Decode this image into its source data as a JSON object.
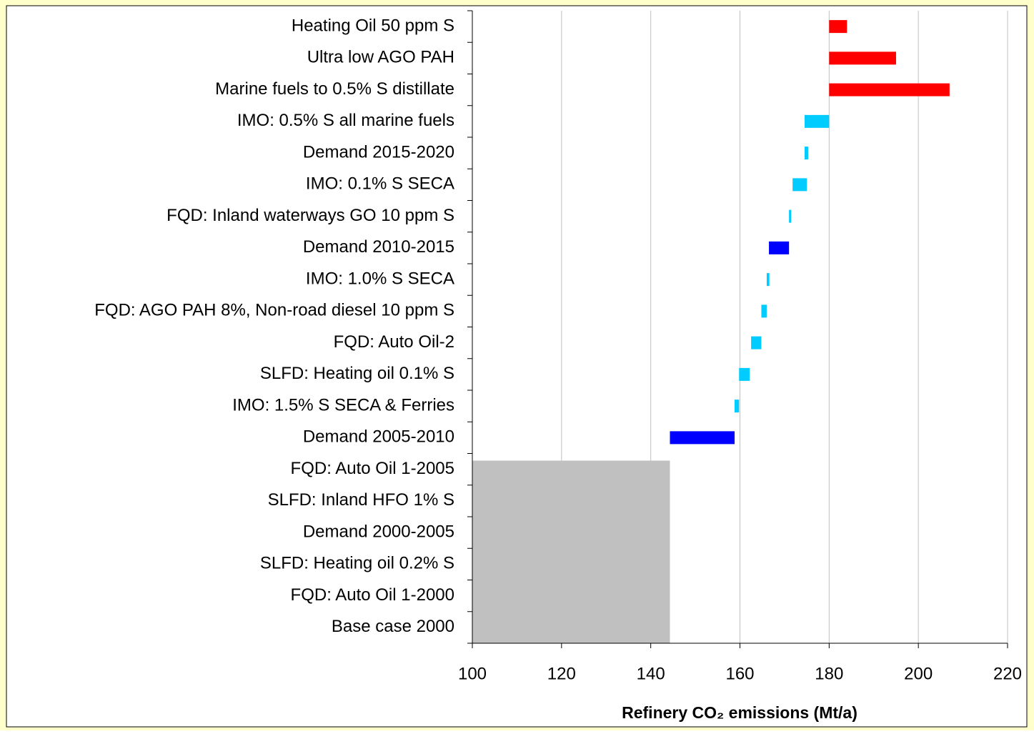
{
  "chart_data": {
    "type": "floating_bar",
    "x_label": "Refinery CO₂ emissions (Mt/a)",
    "categories": [
      "Heating Oil 50 ppm S",
      "Ultra low AGO PAH",
      "Marine fuels to 0.5% S distillate",
      "IMO: 0.5% S all marine fuels",
      "Demand 2015-2020",
      "IMO: 0.1% S SECA",
      "FQD: Inland waterways GO 10 ppm S",
      "Demand 2010-2015",
      "IMO: 1.0% S SECA",
      "FQD: AGO PAH 8%, Non-road diesel 10 ppm S",
      "FQD: Auto Oil-2",
      "SLFD: Heating oil 0.1% S",
      "IMO: 1.5% S SECA & Ferries",
      "Demand 2005-2010",
      "FQD: Auto Oil 1-2005",
      "SLFD: Inland HFO 1% S",
      "Demand 2000-2005",
      "SLFD: Heating oil 0.2% S",
      "FQD: Auto Oil 1-2000",
      "Base case 2000"
    ],
    "low": [
      180,
      180,
      180,
      174.5,
      174.5,
      171.8,
      171,
      166.5,
      166,
      164.8,
      162.5,
      159.8,
      158.8,
      144.3,
      null,
      null,
      null,
      null,
      null,
      null
    ],
    "high": [
      184,
      195,
      207,
      180,
      175.3,
      175,
      171.5,
      171,
      166.6,
      166,
      164.8,
      162.2,
      159.8,
      158.8,
      null,
      null,
      null,
      null,
      null,
      null
    ],
    "colors": [
      "#ff0000",
      "#ff0000",
      "#ff0000",
      "#00ccff",
      "#00ccff",
      "#00ccff",
      "#00ccff",
      "#0000ff",
      "#00ccff",
      "#00ccff",
      "#00ccff",
      "#00ccff",
      "#00ccff",
      "#0000ff",
      null,
      null,
      null,
      null,
      null,
      null
    ],
    "base": {
      "value": 144.3,
      "color": "#c0c0c0"
    },
    "xlim": [
      100,
      220
    ],
    "xticks": [
      100,
      120,
      140,
      160,
      180,
      200,
      220
    ],
    "grid": true
  }
}
